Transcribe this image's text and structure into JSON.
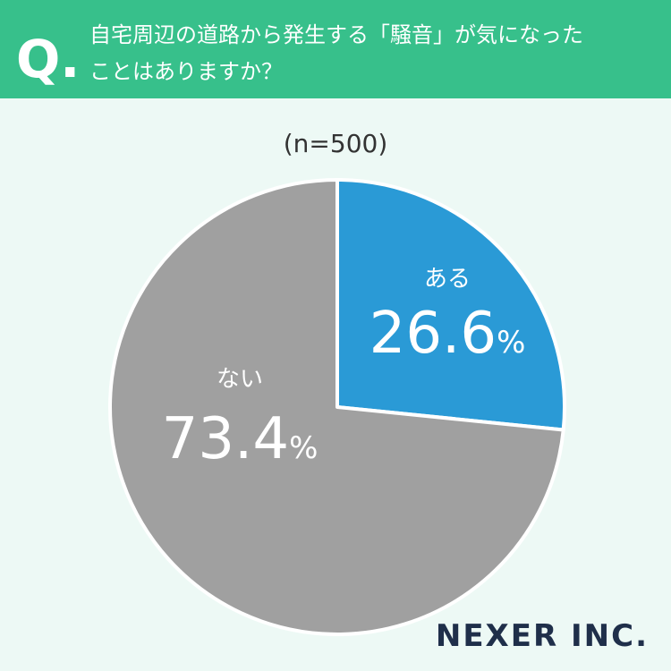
{
  "header": {
    "mark": "Q.",
    "question_lines": [
      "自宅周辺の道路から発生する「騒音」が気になった",
      "ことはありますか？"
    ]
  },
  "chart_data": {
    "type": "pie",
    "subtitle": "(n=500)",
    "categories": [
      "ある",
      "ない"
    ],
    "values": [
      26.6,
      73.4
    ],
    "value_labels": [
      "26.6%",
      "73.4%"
    ],
    "colors": [
      "#2a9ad6",
      "#a0a0a0"
    ]
  },
  "footer": {
    "logo": "NEXER INC."
  }
}
